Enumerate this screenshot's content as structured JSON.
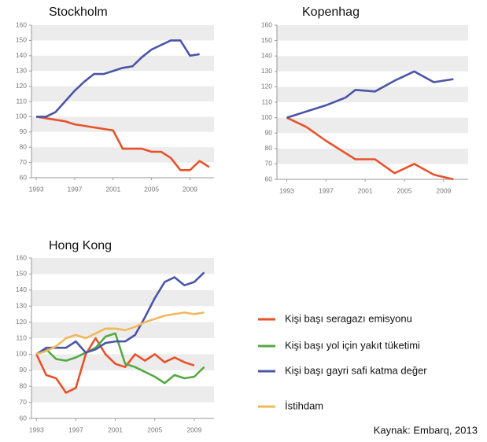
{
  "chart_data": [
    {
      "type": "line",
      "title": "Stockholm",
      "x": [
        1993,
        1994,
        1995,
        1996,
        1997,
        1998,
        1999,
        2000,
        2001,
        2002,
        2003,
        2004,
        2005,
        2006,
        2007,
        2008,
        2009,
        2010,
        2011
      ],
      "series": [
        {
          "color": "#e8512a",
          "values": [
            100,
            99,
            98,
            97,
            95,
            94,
            93,
            92,
            91,
            79,
            79,
            79,
            77,
            77,
            73,
            65,
            65,
            71,
            67
          ]
        },
        {
          "color": "#4b55a6",
          "values": [
            100,
            100,
            103,
            110,
            117,
            123,
            128,
            128,
            130,
            132,
            133,
            139,
            144,
            147,
            150,
            150,
            140,
            141,
            null
          ]
        }
      ],
      "xlim": [
        1992.5,
        2011.5
      ],
      "xticks": [
        1993,
        1997,
        2001,
        2005,
        2009
      ],
      "ylim": [
        60,
        160
      ],
      "yticks": [
        60,
        70,
        80,
        90,
        100,
        110,
        120,
        130,
        140,
        150,
        160
      ],
      "grid": true
    },
    {
      "type": "line",
      "title": "Kopenhag",
      "x": [
        1993,
        1995,
        1997,
        1999,
        2000,
        2002,
        2004,
        2006,
        2008,
        2010
      ],
      "series": [
        {
          "color": "#e8512a",
          "values": [
            100,
            94,
            85,
            77,
            73,
            73,
            64,
            70,
            63,
            60
          ]
        },
        {
          "color": "#4b55a6",
          "values": [
            100,
            104,
            108,
            113,
            118,
            117,
            124,
            130,
            123,
            125
          ]
        }
      ],
      "xlim": [
        1992,
        2011.5
      ],
      "xticks": [
        1993,
        1997,
        2001,
        2005,
        2009
      ],
      "ylim": [
        60,
        160
      ],
      "yticks": [
        60,
        70,
        80,
        90,
        100,
        110,
        120,
        130,
        140,
        150,
        160
      ],
      "grid": true
    },
    {
      "type": "line",
      "title": "Hong Kong",
      "x": [
        1993,
        1994,
        1995,
        1996,
        1997,
        1998,
        1999,
        2000,
        2001,
        2002,
        2003,
        2004,
        2005,
        2006,
        2007,
        2008,
        2009,
        2010
      ],
      "series": [
        {
          "name": "Kişi başı seragazı emisyonu",
          "color": "#e8512a",
          "values": [
            100,
            87,
            85,
            76,
            79,
            100,
            110,
            100,
            94,
            92,
            100,
            96,
            100,
            95,
            98,
            95,
            93,
            null
          ]
        },
        {
          "name": "Kişi başı yol için yakıt tüketimi",
          "color": "#56a843",
          "values": [
            100,
            103,
            97,
            96,
            98,
            101,
            104,
            111,
            113,
            94,
            92,
            89,
            86,
            82,
            87,
            85,
            86,
            92
          ]
        },
        {
          "name": "Kişi başı gayri safi katma değer",
          "color": "#4b55a6",
          "values": [
            100,
            104,
            104,
            104,
            108,
            101,
            103,
            107,
            108,
            108,
            112,
            123,
            135,
            145,
            148,
            143,
            145,
            151
          ]
        },
        {
          "name": "İstihdam",
          "color": "#f2b75b",
          "values": [
            100,
            102,
            105,
            110,
            112,
            110,
            113,
            116,
            116,
            115,
            117,
            120,
            122,
            124,
            125,
            126,
            125,
            126
          ]
        }
      ],
      "xlim": [
        1992.5,
        2011
      ],
      "xticks": [
        1993,
        1997,
        2001,
        2005,
        2009
      ],
      "ylim": [
        60,
        160
      ],
      "yticks": [
        60,
        70,
        80,
        90,
        100,
        110,
        120,
        130,
        140,
        150,
        160
      ],
      "grid": true
    }
  ],
  "source": "Kaynak: Embarq, 2013"
}
